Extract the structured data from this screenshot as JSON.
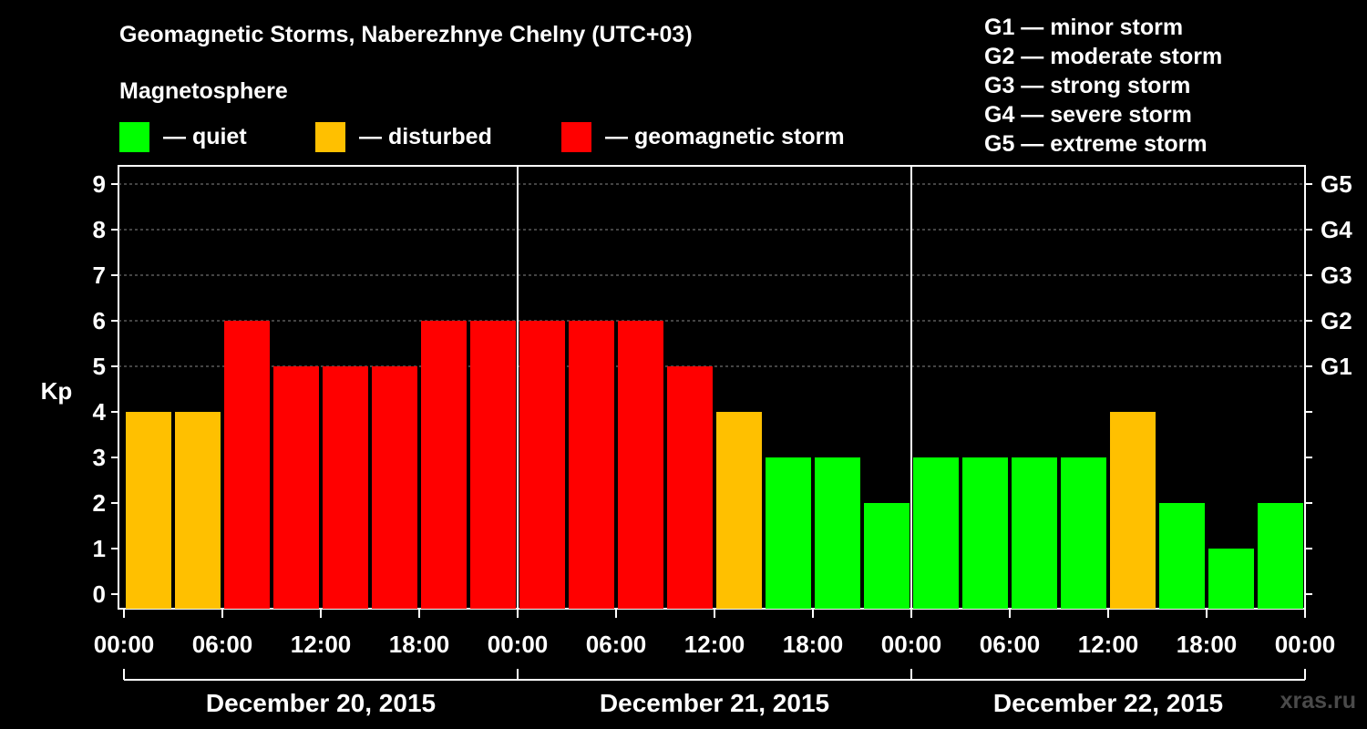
{
  "title": "Geomagnetic Storms, Naberezhnye Chelny (UTC+03)",
  "subtitle": "Magnetosphere",
  "legend": [
    {
      "label": "— quiet",
      "color": "#00ff00"
    },
    {
      "label": "— disturbed",
      "color": "#ffc000"
    },
    {
      "label": "— geomagnetic storm",
      "color": "#ff0000"
    }
  ],
  "storm_scale": [
    "G1 — minor storm",
    "G2 — moderate storm",
    "G3 — strong storm",
    "G4 — severe storm",
    "G5 — extreme storm"
  ],
  "watermark": "xras.ru",
  "chart_data": {
    "type": "bar",
    "title": "Geomagnetic Storms, Naberezhnye Chelny (UTC+03)",
    "ylabel": "Kp",
    "ylim": [
      0,
      9
    ],
    "yticks": [
      0,
      1,
      2,
      3,
      4,
      5,
      6,
      7,
      8,
      9
    ],
    "right_axis": [
      {
        "kp": 5,
        "label": "G1"
      },
      {
        "kp": 6,
        "label": "G2"
      },
      {
        "kp": 7,
        "label": "G3"
      },
      {
        "kp": 8,
        "label": "G4"
      },
      {
        "kp": 9,
        "label": "G5"
      }
    ],
    "xticks": [
      "00:00",
      "06:00",
      "12:00",
      "18:00",
      "00:00",
      "06:00",
      "12:00",
      "18:00",
      "00:00",
      "06:00",
      "12:00",
      "18:00",
      "00:00"
    ],
    "days": [
      "December 20, 2015",
      "December 21, 2015",
      "December 22, 2015"
    ],
    "interval_hours": 3,
    "values": [
      4,
      4,
      6,
      5,
      5,
      5,
      6,
      6,
      6,
      6,
      6,
      5,
      4,
      3,
      3,
      2,
      3,
      3,
      3,
      3,
      4,
      2,
      1,
      2
    ],
    "colors": {
      "quiet": "#00ff00",
      "disturbed": "#ffc000",
      "storm": "#ff0000"
    },
    "thresholds": {
      "disturbed_min": 4,
      "storm_min": 5
    }
  }
}
